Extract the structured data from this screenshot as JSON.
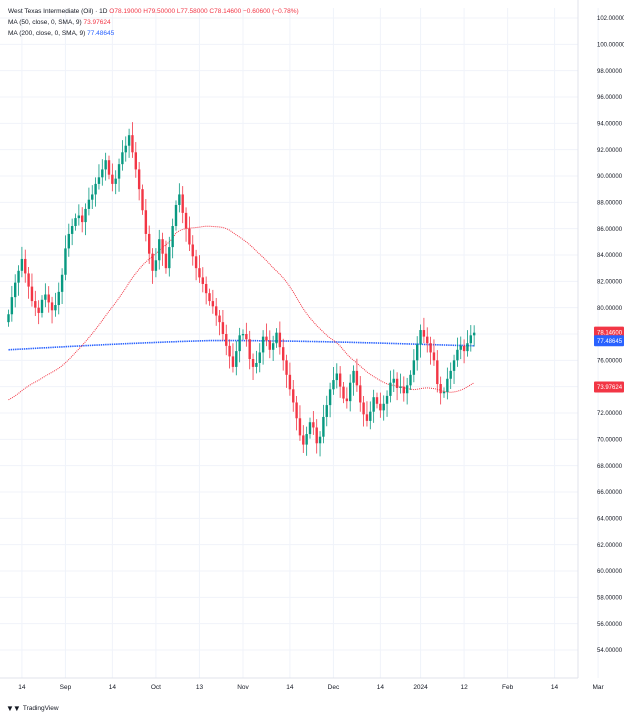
{
  "legend": {
    "symbol_line": "West Texas Intermediate (Oil) · 1D",
    "ohlc": "O78.19000 H79.50000 L77.58000 C78.14600 −0.60600 (−0.78%)",
    "ma50_label": "MA (50, close, 0, SMA, 9)",
    "ma50_value": "73.97624",
    "ma200_label": "MA (200, close, 0, SMA, 9)",
    "ma200_value": "77.48645"
  },
  "brand": "TradingView",
  "colors": {
    "up": "#089981",
    "down": "#f23645",
    "ma50": "#f23645",
    "ma200": "#2962ff",
    "grid": "#f0f3fa"
  },
  "chart_data": {
    "type": "candlestick",
    "y_axis": {
      "min": 52,
      "max": 102,
      "step": 2,
      "tick_labels": [
        "54.00000",
        "56.00000",
        "58.00000",
        "60.00000",
        "62.00000",
        "64.00000",
        "66.00000",
        "68.00000",
        "70.00000",
        "72.00000",
        "74.00000",
        "76.00000",
        "78.00000",
        "80.00000",
        "82.00000",
        "84.00000",
        "86.00000",
        "88.00000",
        "90.00000",
        "92.00000",
        "94.00000",
        "96.00000",
        "98.00000",
        "100.00000",
        "102.00000"
      ]
    },
    "x_axis": {
      "tick_labels": [
        "14",
        "Sep",
        "14",
        "Oct",
        "13",
        "Nov",
        "14",
        "Dec",
        "14",
        "2024",
        "12",
        "Feb",
        "14",
        "Mar",
        "14"
      ],
      "tick_index": [
        4,
        17,
        31,
        44,
        57,
        70,
        84,
        97,
        111,
        123,
        136,
        149,
        163,
        176,
        190
      ]
    },
    "price_labels": [
      {
        "series": "close",
        "value": "78.14600"
      },
      {
        "series": "ma200",
        "value": "77.48645"
      },
      {
        "series": "ma50",
        "value": "73.97624"
      }
    ],
    "close": [
      79.5,
      80.8,
      81.9,
      82.8,
      83.7,
      82.6,
      81.6,
      80.5,
      80.0,
      79.6,
      80.6,
      81.0,
      80.4,
      79.8,
      80.2,
      81.2,
      82.5,
      84.5,
      85.6,
      86.2,
      86.8,
      87.0,
      86.5,
      87.5,
      88.2,
      88.6,
      89.4,
      89.9,
      90.5,
      91.2,
      90.1,
      89.4,
      89.8,
      90.9,
      91.8,
      92.3,
      93.1,
      91.8,
      90.5,
      89.0,
      87.4,
      85.6,
      84.1,
      82.8,
      83.6,
      85.2,
      84.1,
      83.0,
      84.6,
      86.2,
      87.8,
      88.6,
      87.2,
      86.0,
      84.8,
      83.9,
      83.0,
      82.3,
      81.8,
      81.1,
      80.5,
      80.1,
      79.4,
      78.9,
      78.0,
      77.1,
      76.3,
      75.5,
      76.7,
      77.9,
      78.0,
      77.6,
      76.1,
      75.5,
      75.8,
      76.6,
      77.8,
      77.5,
      76.8,
      77.3,
      78.1,
      77.0,
      76.0,
      74.9,
      73.8,
      72.8,
      71.6,
      70.3,
      69.6,
      70.4,
      71.3,
      70.9,
      69.7,
      70.2,
      71.7,
      72.6,
      73.8,
      74.5,
      75.0,
      74.0,
      73.1,
      72.9,
      74.3,
      75.2,
      74.1,
      72.8,
      71.9,
      71.4,
      72.1,
      73.2,
      72.7,
      72.2,
      72.7,
      73.3,
      74.3,
      74.6,
      73.9,
      74.0,
      73.5,
      74.1,
      74.9,
      76.0,
      77.2,
      78.3,
      77.8,
      77.3,
      76.6,
      76.0,
      74.2,
      73.5,
      73.6,
      74.6,
      75.2,
      76.0,
      76.8,
      77.1,
      76.7,
      77.3,
      77.9,
      78.1
    ]
  }
}
